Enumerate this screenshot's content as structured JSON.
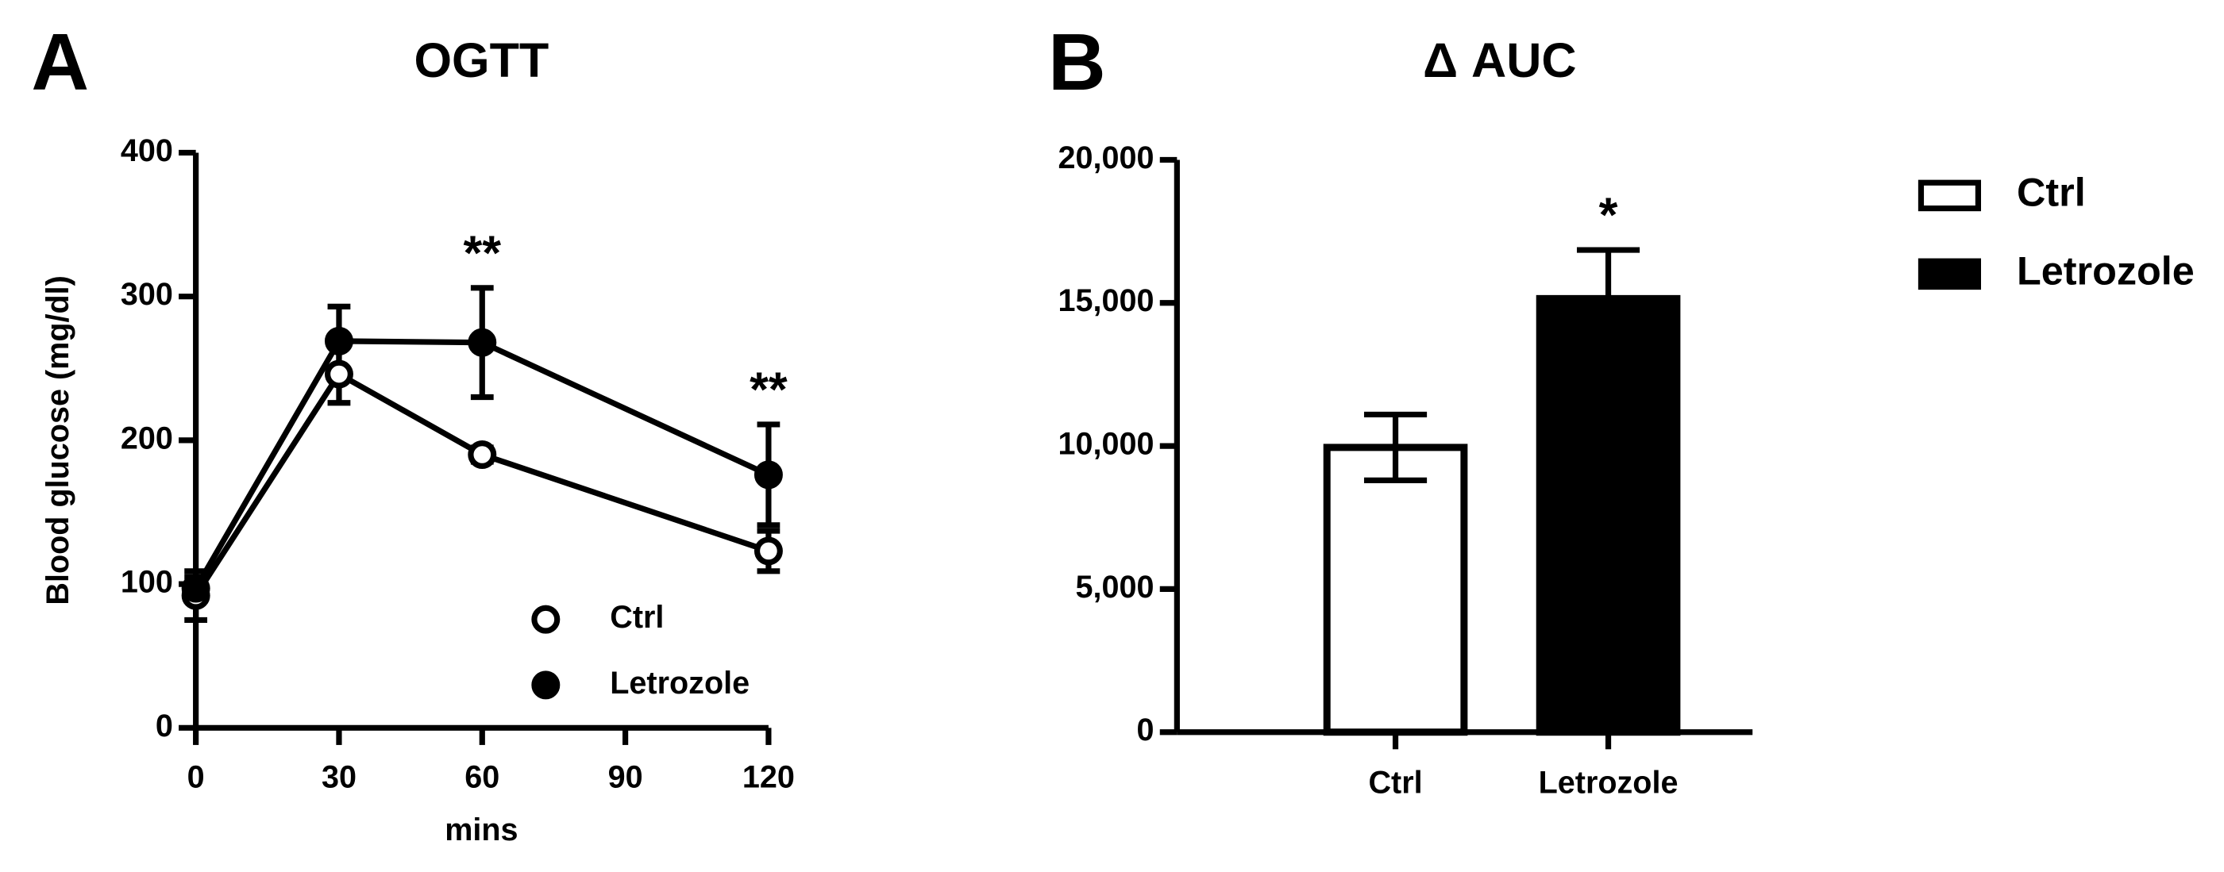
{
  "chart_data": [
    {
      "type": "line",
      "panel": "A",
      "title": "OGTT",
      "x_label": "mins",
      "y_label": "Blood glucose (mg/dl)",
      "x": [
        0,
        30,
        60,
        120
      ],
      "series": [
        {
          "name": "Ctrl",
          "color": "#ffffff",
          "values": [
            92,
            246,
            190,
            123
          ],
          "errors": [
            17,
            20,
            5,
            14
          ]
        },
        {
          "name": "Letrozole",
          "color": "#000000",
          "values": [
            97,
            269,
            268,
            176
          ],
          "errors": [
            8,
            24,
            38,
            35
          ]
        }
      ],
      "annotations": [
        {
          "text": "**",
          "x": 60
        },
        {
          "text": "**",
          "x": 120
        }
      ],
      "xlim": [
        0,
        120
      ],
      "xticks": [
        0,
        30,
        60,
        90,
        120
      ],
      "ylim": [
        0,
        400
      ],
      "yticks": [
        0,
        100,
        200,
        300,
        400
      ]
    },
    {
      "type": "bar",
      "panel": "B",
      "title": "Δ AUC",
      "categories": [
        "Ctrl",
        "Letrozole"
      ],
      "series": [
        {
          "name": "Ctrl",
          "color": "#ffffff"
        },
        {
          "name": "Letrozole",
          "color": "#000000"
        }
      ],
      "values": [
        9950,
        15150
      ],
      "errors": [
        1150,
        1700
      ],
      "annotations": [
        {
          "text": "*",
          "x": "Letrozole"
        }
      ],
      "ylim": [
        0,
        20000
      ],
      "yticks": [
        0,
        {
          "value": 5000,
          "label": "5,000"
        },
        {
          "value": 10000,
          "label": "10,000"
        },
        {
          "value": 15000,
          "label": "15,000"
        },
        {
          "value": 20000,
          "label": "20,000"
        }
      ]
    }
  ]
}
